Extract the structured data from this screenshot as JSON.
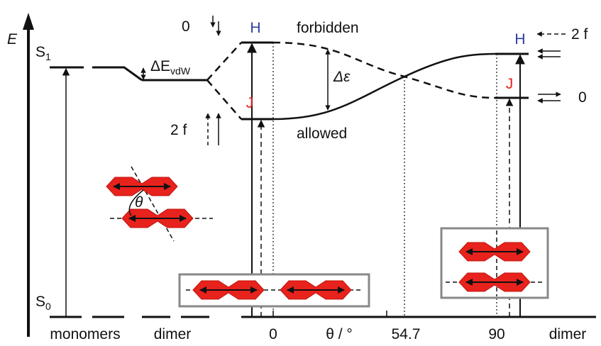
{
  "axis": {
    "energy_label": "E",
    "s1": {
      "base": "S",
      "sub": "1"
    },
    "s0": {
      "base": "S",
      "sub": "0"
    },
    "x_labels": [
      "monomers",
      "dimer",
      "0",
      "θ / °",
      "54.7",
      "90",
      "dimer"
    ]
  },
  "levels": {
    "h_left": "H",
    "j_left": "J",
    "h_right": "H",
    "j_right": "J"
  },
  "annotations": {
    "zero_left": "0",
    "two_f_left": "2 f",
    "zero_right": "0",
    "two_f_right": "2 f",
    "forbidden": "forbidden",
    "allowed": "allowed",
    "delta_e_vdw": {
      "base": "ΔE",
      "sub": "vdW"
    },
    "delta_epsilon": "Δε"
  },
  "inset": {
    "angle": "θ"
  }
}
